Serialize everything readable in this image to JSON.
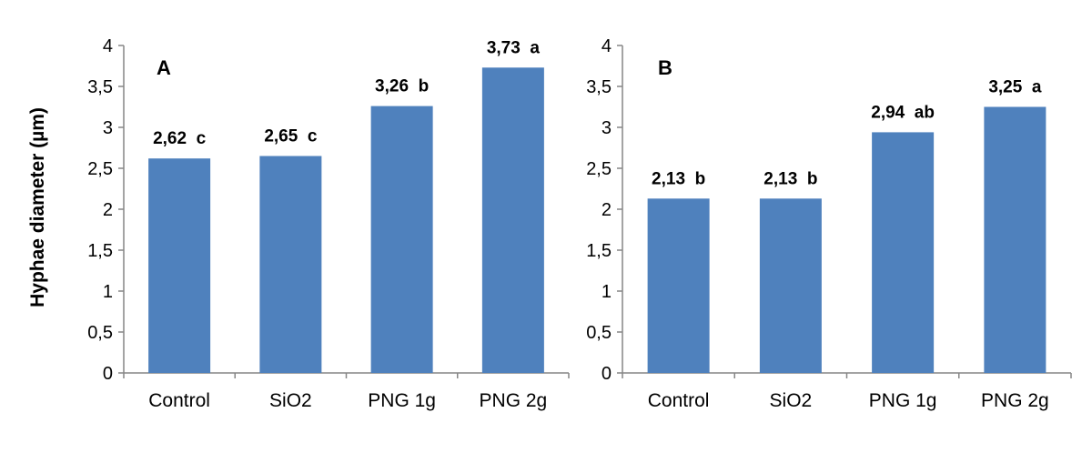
{
  "figure": {
    "y_axis_title": "Hyphae diameter (µm)"
  },
  "chart_data": [
    {
      "type": "bar",
      "panel_label": "A",
      "categories": [
        "Control",
        "SiO2",
        "PNG 1g",
        "PNG 2g"
      ],
      "values": [
        2.62,
        2.65,
        3.26,
        3.73
      ],
      "data_labels": [
        "2,62  c",
        "2,65  c",
        "3,26  b",
        "3,73  a"
      ],
      "ylabel": "Hyphae diameter (µm)",
      "ylim": [
        0,
        4
      ],
      "yticks": [
        0,
        0.5,
        1,
        1.5,
        2,
        2.5,
        3,
        3.5,
        4
      ],
      "ytick_labels": [
        "0",
        "0,5",
        "1",
        "1,5",
        "2",
        "2,5",
        "3",
        "3,5",
        "4"
      ],
      "grid": false,
      "bar_color": "#4f81bd"
    },
    {
      "type": "bar",
      "panel_label": "B",
      "categories": [
        "Control",
        "SiO2",
        "PNG 1g",
        "PNG 2g"
      ],
      "values": [
        2.13,
        2.13,
        2.94,
        3.25
      ],
      "data_labels": [
        "2,13  b",
        "2,13  b",
        "2,94  ab",
        "3,25  a"
      ],
      "ylabel": "",
      "ylim": [
        0,
        4
      ],
      "yticks": [
        0,
        0.5,
        1,
        1.5,
        2,
        2.5,
        3,
        3.5,
        4
      ],
      "ytick_labels": [
        "0",
        "0,5",
        "1",
        "1,5",
        "2",
        "2,5",
        "3",
        "3,5",
        "4"
      ],
      "grid": false,
      "bar_color": "#4f81bd"
    }
  ]
}
